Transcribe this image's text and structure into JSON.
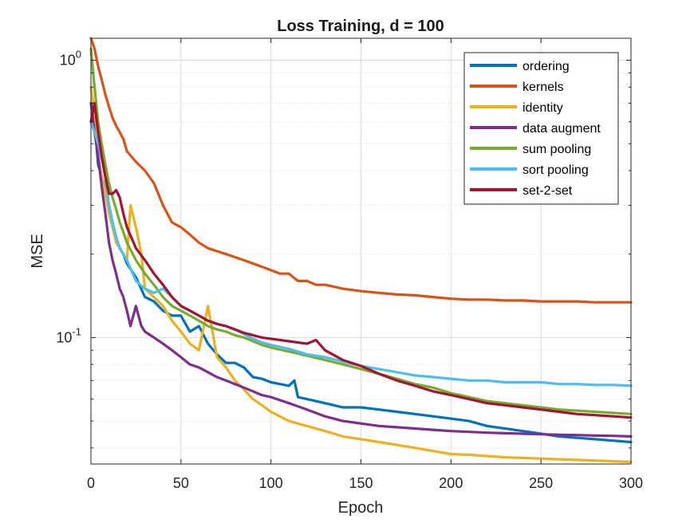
{
  "chart_data": {
    "type": "line",
    "title": "Loss Training, d = 100",
    "xlabel": "Epoch",
    "ylabel": "MSE",
    "yscale": "log",
    "xlim": [
      0,
      300
    ],
    "ylim": [
      0.035,
      1.2
    ],
    "grid": true,
    "legend_position": "top-right",
    "x_ticks": [
      {
        "value": 0,
        "label": "0"
      },
      {
        "value": 50,
        "label": "50"
      },
      {
        "value": 100,
        "label": "100"
      },
      {
        "value": 150,
        "label": "150"
      },
      {
        "value": 200,
        "label": "200"
      },
      {
        "value": 250,
        "label": "250"
      },
      {
        "value": 300,
        "label": "300"
      }
    ],
    "y_ticks": [
      {
        "value": 0.1,
        "base": "10",
        "exp": "-1"
      },
      {
        "value": 1,
        "base": "10",
        "exp": "0"
      }
    ],
    "series": [
      {
        "name": "ordering",
        "color": "#0072BD",
        "x": [
          0,
          2,
          4,
          6,
          8,
          10,
          12,
          14,
          16,
          18,
          20,
          25,
          30,
          35,
          40,
          45,
          50,
          55,
          60,
          65,
          70,
          75,
          80,
          85,
          90,
          95,
          100,
          105,
          110,
          113,
          115,
          120,
          130,
          140,
          150,
          160,
          170,
          180,
          190,
          200,
          210,
          215,
          220,
          230,
          240,
          250,
          260,
          270,
          280,
          290,
          300
        ],
        "values": [
          0.7,
          0.6,
          0.42,
          0.38,
          0.34,
          0.3,
          0.26,
          0.23,
          0.21,
          0.2,
          0.185,
          0.165,
          0.14,
          0.135,
          0.125,
          0.12,
          0.12,
          0.105,
          0.11,
          0.095,
          0.087,
          0.081,
          0.081,
          0.078,
          0.072,
          0.071,
          0.069,
          0.068,
          0.067,
          0.07,
          0.061,
          0.06,
          0.058,
          0.056,
          0.056,
          0.055,
          0.054,
          0.053,
          0.052,
          0.051,
          0.05,
          0.049,
          0.048,
          0.047,
          0.046,
          0.045,
          0.044,
          0.0435,
          0.043,
          0.0425,
          0.042
        ]
      },
      {
        "name": "kernels",
        "color": "#D95319",
        "x": [
          0,
          2,
          4,
          6,
          8,
          10,
          12,
          14,
          16,
          18,
          20,
          25,
          30,
          35,
          40,
          45,
          50,
          55,
          60,
          65,
          70,
          75,
          80,
          85,
          90,
          95,
          100,
          105,
          110,
          115,
          120,
          125,
          130,
          140,
          150,
          160,
          170,
          180,
          190,
          200,
          210,
          220,
          230,
          240,
          250,
          260,
          270,
          280,
          290,
          300
        ],
        "values": [
          1.2,
          1.1,
          0.95,
          0.85,
          0.75,
          0.68,
          0.62,
          0.58,
          0.55,
          0.52,
          0.47,
          0.43,
          0.4,
          0.36,
          0.3,
          0.26,
          0.25,
          0.235,
          0.22,
          0.21,
          0.205,
          0.2,
          0.195,
          0.19,
          0.185,
          0.18,
          0.175,
          0.17,
          0.17,
          0.16,
          0.16,
          0.155,
          0.155,
          0.15,
          0.147,
          0.145,
          0.143,
          0.142,
          0.14,
          0.138,
          0.137,
          0.137,
          0.136,
          0.136,
          0.135,
          0.135,
          0.135,
          0.134,
          0.134,
          0.134
        ]
      },
      {
        "name": "identity",
        "color": "#EDB120",
        "x": [
          0,
          2,
          4,
          6,
          8,
          10,
          12,
          14,
          16,
          18,
          20,
          22,
          25,
          28,
          30,
          35,
          40,
          45,
          50,
          55,
          60,
          65,
          70,
          75,
          80,
          85,
          90,
          95,
          100,
          105,
          110,
          120,
          130,
          140,
          150,
          160,
          170,
          180,
          190,
          200,
          210,
          220,
          230,
          240,
          250,
          260,
          270,
          280,
          290,
          300
        ],
        "values": [
          0.8,
          0.65,
          0.45,
          0.38,
          0.33,
          0.28,
          0.25,
          0.22,
          0.21,
          0.2,
          0.19,
          0.3,
          0.25,
          0.2,
          0.15,
          0.14,
          0.13,
          0.115,
          0.105,
          0.095,
          0.09,
          0.13,
          0.085,
          0.078,
          0.07,
          0.065,
          0.06,
          0.057,
          0.054,
          0.052,
          0.05,
          0.048,
          0.046,
          0.044,
          0.043,
          0.042,
          0.041,
          0.04,
          0.039,
          0.038,
          0.0378,
          0.0374,
          0.037,
          0.0368,
          0.0366,
          0.0364,
          0.0362,
          0.036,
          0.0358,
          0.0356
        ]
      },
      {
        "name": "data augment",
        "color": "#7E2F8E",
        "x": [
          0,
          2,
          4,
          6,
          8,
          10,
          12,
          14,
          16,
          18,
          20,
          22,
          25,
          28,
          30,
          35,
          40,
          45,
          50,
          55,
          60,
          65,
          70,
          75,
          80,
          85,
          90,
          95,
          100,
          110,
          120,
          130,
          140,
          150,
          160,
          170,
          180,
          190,
          200,
          210,
          220,
          230,
          240,
          250,
          260,
          270,
          280,
          290,
          300
        ],
        "values": [
          0.7,
          0.55,
          0.45,
          0.35,
          0.28,
          0.22,
          0.19,
          0.17,
          0.15,
          0.14,
          0.125,
          0.11,
          0.13,
          0.11,
          0.105,
          0.1,
          0.095,
          0.09,
          0.085,
          0.08,
          0.078,
          0.075,
          0.072,
          0.07,
          0.068,
          0.066,
          0.064,
          0.062,
          0.061,
          0.058,
          0.055,
          0.052,
          0.05,
          0.049,
          0.048,
          0.0475,
          0.047,
          0.0465,
          0.046,
          0.0457,
          0.0454,
          0.0452,
          0.045,
          0.0448,
          0.0446,
          0.0445,
          0.0443,
          0.0442,
          0.044
        ]
      },
      {
        "name": "sum pooling",
        "color": "#77AC30",
        "x": [
          0,
          2,
          4,
          6,
          8,
          10,
          12,
          14,
          16,
          18,
          20,
          25,
          30,
          35,
          40,
          45,
          50,
          55,
          60,
          65,
          70,
          75,
          80,
          85,
          90,
          95,
          100,
          110,
          120,
          130,
          140,
          150,
          160,
          170,
          180,
          190,
          200,
          210,
          220,
          230,
          240,
          250,
          260,
          270,
          280,
          290,
          300
        ],
        "values": [
          1.1,
          0.8,
          0.6,
          0.5,
          0.42,
          0.36,
          0.32,
          0.29,
          0.26,
          0.24,
          0.22,
          0.19,
          0.17,
          0.155,
          0.14,
          0.13,
          0.125,
          0.12,
          0.115,
          0.11,
          0.107,
          0.105,
          0.102,
          0.1,
          0.097,
          0.094,
          0.092,
          0.089,
          0.086,
          0.083,
          0.08,
          0.077,
          0.074,
          0.071,
          0.068,
          0.066,
          0.063,
          0.061,
          0.059,
          0.058,
          0.057,
          0.056,
          0.055,
          0.0545,
          0.054,
          0.0535,
          0.053
        ]
      },
      {
        "name": "sort pooling",
        "color": "#4DBEEE",
        "x": [
          0,
          2,
          4,
          6,
          8,
          10,
          12,
          14,
          16,
          18,
          20,
          25,
          30,
          35,
          40,
          45,
          50,
          55,
          60,
          65,
          70,
          75,
          80,
          85,
          90,
          95,
          100,
          110,
          120,
          130,
          140,
          150,
          160,
          170,
          180,
          190,
          200,
          210,
          220,
          230,
          240,
          250,
          260,
          270,
          280,
          290,
          300
        ],
        "values": [
          0.6,
          0.55,
          0.5,
          0.44,
          0.38,
          0.3,
          0.26,
          0.23,
          0.21,
          0.2,
          0.19,
          0.16,
          0.15,
          0.145,
          0.15,
          0.14,
          0.13,
          0.125,
          0.12,
          0.115,
          0.112,
          0.11,
          0.107,
          0.103,
          0.099,
          0.096,
          0.094,
          0.091,
          0.087,
          0.085,
          0.082,
          0.079,
          0.077,
          0.075,
          0.073,
          0.072,
          0.071,
          0.07,
          0.07,
          0.069,
          0.069,
          0.069,
          0.068,
          0.068,
          0.0675,
          0.0675,
          0.067
        ]
      },
      {
        "name": "set-2-set",
        "color": "#A2142F",
        "x": [
          0,
          2,
          4,
          6,
          8,
          10,
          12,
          14,
          16,
          18,
          20,
          25,
          30,
          35,
          40,
          45,
          50,
          55,
          60,
          65,
          70,
          75,
          80,
          85,
          90,
          95,
          100,
          110,
          120,
          125,
          130,
          140,
          150,
          160,
          170,
          180,
          190,
          200,
          210,
          220,
          230,
          240,
          250,
          260,
          270,
          280,
          290,
          300
        ],
        "values": [
          0.6,
          0.7,
          0.55,
          0.45,
          0.38,
          0.33,
          0.33,
          0.34,
          0.32,
          0.28,
          0.25,
          0.21,
          0.19,
          0.17,
          0.155,
          0.14,
          0.13,
          0.125,
          0.12,
          0.115,
          0.112,
          0.11,
          0.107,
          0.104,
          0.102,
          0.1,
          0.099,
          0.097,
          0.095,
          0.098,
          0.09,
          0.083,
          0.079,
          0.074,
          0.07,
          0.067,
          0.064,
          0.062,
          0.06,
          0.058,
          0.057,
          0.056,
          0.055,
          0.054,
          0.053,
          0.0525,
          0.052,
          0.0515
        ]
      }
    ]
  }
}
